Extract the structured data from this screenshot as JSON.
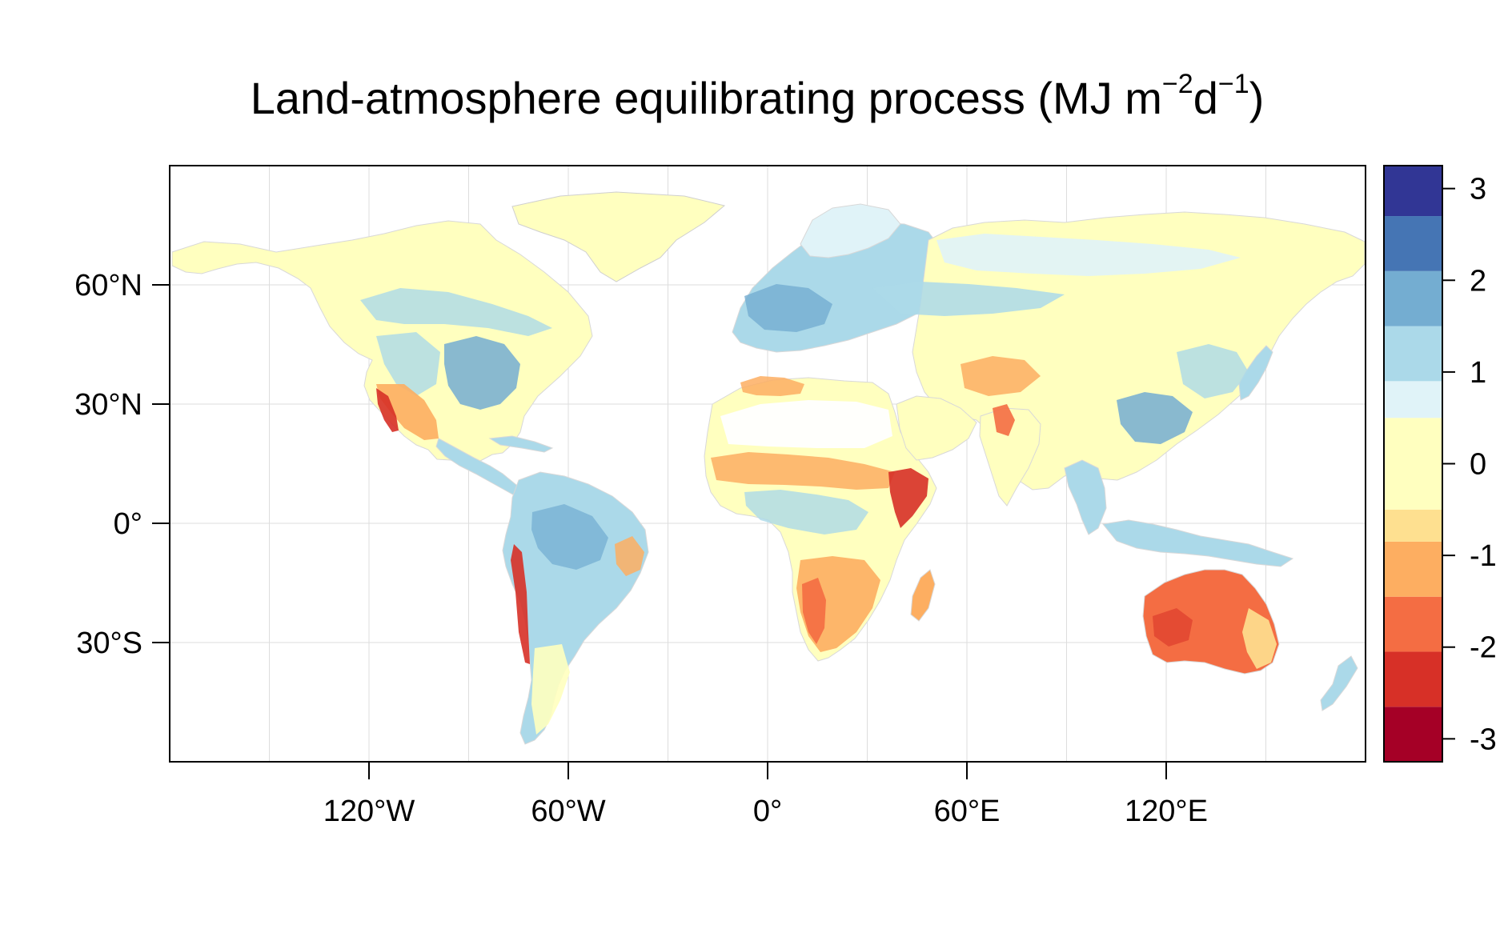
{
  "title": {
    "main": "Land-atmosphere equilibrating process (MJ m",
    "exp1": "−2",
    "mid": "d",
    "exp2": "−1",
    "close": ")"
  },
  "map": {
    "lon_range": [
      -180,
      180
    ],
    "lat_range": [
      -60,
      90
    ],
    "grid": true,
    "longitude_ticks": [
      {
        "value": -120,
        "label": "120°W"
      },
      {
        "value": -60,
        "label": "60°W"
      },
      {
        "value": 0,
        "label": "0°"
      },
      {
        "value": 60,
        "label": "60°E"
      },
      {
        "value": 120,
        "label": "120°E"
      }
    ],
    "latitude_ticks": [
      {
        "value": 60,
        "label": "60°N"
      },
      {
        "value": 30,
        "label": "30°N"
      },
      {
        "value": 0,
        "label": "0°"
      },
      {
        "value": -30,
        "label": "30°S"
      }
    ]
  },
  "legend": {
    "placement": "right",
    "range": [
      -3.25,
      3.25
    ],
    "bins": [
      {
        "from": -3.25,
        "to": -2.65,
        "color": "#a50026"
      },
      {
        "from": -2.65,
        "to": -2.05,
        "color": "#d73027"
      },
      {
        "from": -2.05,
        "to": -1.45,
        "color": "#f46d43"
      },
      {
        "from": -1.45,
        "to": -0.85,
        "color": "#fdae61"
      },
      {
        "from": -0.85,
        "to": -0.5,
        "color": "#fee090"
      },
      {
        "from": -0.5,
        "to": 0.5,
        "color": "#ffffbf"
      },
      {
        "from": 0.5,
        "to": 0.9,
        "color": "#e0f3f8"
      },
      {
        "from": 0.9,
        "to": 1.5,
        "color": "#abd9e9"
      },
      {
        "from": 1.5,
        "to": 2.1,
        "color": "#74add1"
      },
      {
        "from": 2.1,
        "to": 2.7,
        "color": "#4575b4"
      },
      {
        "from": 2.7,
        "to": 3.25,
        "color": "#313695"
      }
    ],
    "ticks": [
      {
        "value": 3,
        "label": "3"
      },
      {
        "value": 2,
        "label": "2"
      },
      {
        "value": 1,
        "label": "1"
      },
      {
        "value": 0,
        "label": "0"
      },
      {
        "value": -1,
        "label": "-1"
      },
      {
        "value": -2,
        "label": "-2"
      },
      {
        "value": -3,
        "label": "-3"
      }
    ]
  },
  "colors": {
    "land_neutral": "#ffffbf",
    "land_light_blue": "#e0f3f8",
    "land_blue": "#abd9e9",
    "land_mid_blue": "#74add1",
    "land_dark_blue": "#4575b4",
    "land_light_orange": "#fee090",
    "land_orange": "#fdae61",
    "land_red_orange": "#f46d43",
    "land_red": "#d73027",
    "land_dark_red": "#a50026",
    "grid": "#dddddd",
    "frame": "#000000"
  }
}
